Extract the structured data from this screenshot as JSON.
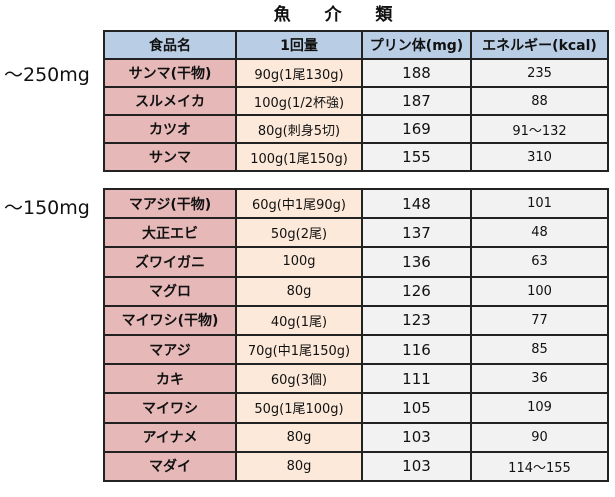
{
  "title": "魚 介 類",
  "headers": {
    "name": "食品名",
    "amount": "1回量",
    "purine": "プリン体(mg)",
    "energy": "エネルギー(kcal)"
  },
  "groups": [
    {
      "label": "～250mg",
      "rows": [
        {
          "name": "サンマ(干物)",
          "amount": "90g(1尾130g)",
          "purine": "188",
          "energy": "235"
        },
        {
          "name": "スルメイカ",
          "amount": "100g(1/2杯強)",
          "purine": "187",
          "energy": "88"
        },
        {
          "name": "カツオ",
          "amount": "80g(刺身5切)",
          "purine": "169",
          "energy": "91～132"
        },
        {
          "name": "サンマ",
          "amount": "100g(1尾150g)",
          "purine": "155",
          "energy": "310"
        }
      ]
    },
    {
      "label": "～150mg",
      "rows": [
        {
          "name": "マアジ(干物)",
          "amount": "60g(中1尾90g)",
          "purine": "148",
          "energy": "101"
        },
        {
          "name": "大正エビ",
          "amount": "50g(2尾)",
          "purine": "137",
          "energy": "48"
        },
        {
          "name": "ズワイガニ",
          "amount": "100g",
          "purine": "136",
          "energy": "63"
        },
        {
          "name": "マグロ",
          "amount": "80g",
          "purine": "126",
          "energy": "100"
        },
        {
          "name": "マイワシ(干物)",
          "amount": "40g(1尾)",
          "purine": "123",
          "energy": "77"
        },
        {
          "name": "マアジ",
          "amount": "70g(中1尾150g)",
          "purine": "116",
          "energy": "85"
        },
        {
          "name": "カキ",
          "amount": "60g(3個)",
          "purine": "111",
          "energy": "36"
        },
        {
          "name": "マイワシ",
          "amount": "50g(1尾100g)",
          "purine": "105",
          "energy": "109"
        },
        {
          "name": "アイナメ",
          "amount": "80g",
          "purine": "103",
          "energy": "90"
        },
        {
          "name": "マダイ",
          "amount": "80g",
          "purine": "103",
          "energy": "114～155"
        }
      ]
    }
  ]
}
